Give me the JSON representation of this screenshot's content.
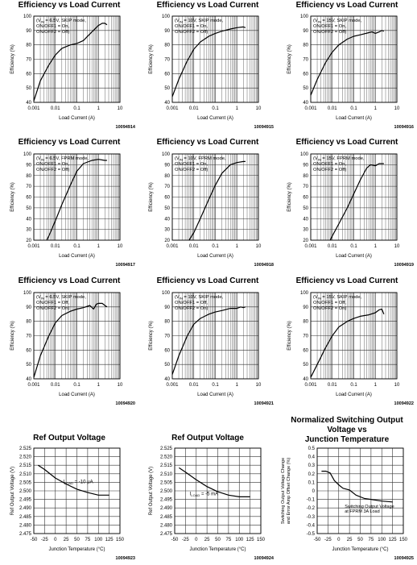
{
  "chart_data": [
    {
      "type": "line",
      "title": "Efficiency vs Load Current",
      "xlabel": "Load Current (A)",
      "ylabel": "Efficiency (%)",
      "xscale": "log",
      "xlim": [
        0.001,
        10
      ],
      "ylim": [
        40,
        100
      ],
      "xticks": [
        "0.001",
        "0.01",
        "0.1",
        "1",
        "10"
      ],
      "yticks": [
        "40",
        "50",
        "60",
        "70",
        "80",
        "90",
        "100"
      ],
      "annotation": [
        "(V",
        "IN",
        " = 6.5V, SKIP mode,",
        "ON/OFF1 = On,",
        "ON/OFF2 = Off)"
      ],
      "code": "10094914",
      "series": [
        {
          "x": [
            0.001,
            0.002,
            0.005,
            0.01,
            0.02,
            0.05,
            0.1,
            0.2,
            0.5,
            1,
            1.5,
            2,
            2.5
          ],
          "y": [
            41,
            55,
            66,
            73,
            77.5,
            80,
            81,
            83,
            89,
            93.5,
            95,
            95,
            94
          ]
        }
      ]
    },
    {
      "type": "line",
      "title": "Efficiency vs Load Current",
      "xlabel": "Load Current (A)",
      "ylabel": "Efficiency (%)",
      "xscale": "log",
      "xlim": [
        0.001,
        10
      ],
      "ylim": [
        40,
        100
      ],
      "xticks": [
        "0.001",
        "0.01",
        "0.1",
        "1",
        "10"
      ],
      "yticks": [
        "40",
        "50",
        "60",
        "70",
        "80",
        "90",
        "100"
      ],
      "annotation": [
        "(V",
        "IN",
        " = 10V, SKIP mode,",
        "ON/OFF1 = On,",
        "ON/OFF2 = Off)"
      ],
      "code": "10094915",
      "series": [
        {
          "x": [
            0.001,
            0.002,
            0.005,
            0.01,
            0.02,
            0.05,
            0.1,
            0.2,
            0.5,
            1,
            2,
            2.5
          ],
          "y": [
            44,
            56,
            69,
            77,
            82,
            86,
            88,
            89.5,
            91,
            92,
            92.5,
            92
          ]
        }
      ]
    },
    {
      "type": "line",
      "title": "Efficiency vs Load Current",
      "xlabel": "Load Current (A)",
      "ylabel": "Efficiency (%)",
      "xscale": "log",
      "xlim": [
        0.001,
        10
      ],
      "ylim": [
        40,
        100
      ],
      "xticks": [
        "0.001",
        "0.01",
        "0.1",
        "1",
        "10"
      ],
      "yticks": [
        "40",
        "50",
        "60",
        "70",
        "80",
        "90",
        "100"
      ],
      "annotation": [
        "(V",
        "IN",
        " = 15V, SKIP mode,",
        "ON/OFF1 = On,",
        "ON/OFF2 = Off)"
      ],
      "code": "10094916",
      "series": [
        {
          "x": [
            0.001,
            0.002,
            0.005,
            0.01,
            0.02,
            0.05,
            0.1,
            0.2,
            0.5,
            0.7,
            1,
            1.5,
            2,
            2.5
          ],
          "y": [
            45,
            56,
            68,
            75,
            80,
            84,
            86,
            87,
            88.5,
            89,
            88,
            89,
            90,
            89.5
          ]
        }
      ]
    },
    {
      "type": "line",
      "title": "Efficiency vs Load Current",
      "xlabel": "Load Current (A)",
      "ylabel": "Efficiency (%)",
      "xscale": "log",
      "xlim": [
        0.001,
        10
      ],
      "ylim": [
        20,
        100
      ],
      "xticks": [
        "0.001",
        "0.01",
        "0.1",
        "1",
        "10"
      ],
      "yticks": [
        "20",
        "30",
        "40",
        "50",
        "60",
        "70",
        "80",
        "90",
        "100"
      ],
      "annotation": [
        "(V",
        "IN",
        " = 6.5V, FPRM mode,",
        "ON/OFF1 = On,",
        "ON/OFF2 = Off)"
      ],
      "code": "10094917",
      "series": [
        {
          "x": [
            0.004,
            0.005,
            0.01,
            0.02,
            0.05,
            0.1,
            0.2,
            0.5,
            1,
            2,
            2.5
          ],
          "y": [
            20,
            24,
            38,
            53,
            71,
            84,
            91,
            94,
            95,
            94,
            94
          ]
        }
      ]
    },
    {
      "type": "line",
      "title": "Efficiency vs Load Current",
      "xlabel": "Load Current (A)",
      "ylabel": "Efficiency (%)",
      "xscale": "log",
      "xlim": [
        0.001,
        10
      ],
      "ylim": [
        20,
        100
      ],
      "xticks": [
        "0.001",
        "0.01",
        "0.1",
        "1",
        "10"
      ],
      "yticks": [
        "20",
        "30",
        "40",
        "50",
        "60",
        "70",
        "80",
        "90",
        "100"
      ],
      "annotation": [
        "(V",
        "IN",
        " = 10V, FPRM mode,",
        "ON/OFF1 = On,",
        "ON/OFF2 = Off)"
      ],
      "code": "10094918",
      "series": [
        {
          "x": [
            0.006,
            0.01,
            0.02,
            0.05,
            0.1,
            0.2,
            0.5,
            1,
            2,
            2.5
          ],
          "y": [
            20,
            27,
            40,
            58,
            71,
            82,
            90,
            92,
            93,
            93
          ]
        }
      ]
    },
    {
      "type": "line",
      "title": "Efficiency vs Load Current",
      "xlabel": "Load Current (A)",
      "ylabel": "Efficiency (%)",
      "xscale": "log",
      "xlim": [
        0.001,
        10
      ],
      "ylim": [
        20,
        100
      ],
      "xticks": [
        "0.001",
        "0.01",
        "0.1",
        "1",
        "10"
      ],
      "yticks": [
        "20",
        "30",
        "40",
        "50",
        "60",
        "70",
        "80",
        "90",
        "100"
      ],
      "annotation": [
        "(V",
        "IN",
        " = 15V, FPRM mode,",
        "ON/OFF1 = On,",
        "ON/OFF2 = Off)"
      ],
      "code": "10094919",
      "series": [
        {
          "x": [
            0.008,
            0.01,
            0.02,
            0.05,
            0.1,
            0.2,
            0.4,
            0.6,
            1,
            1.5,
            2,
            2.5
          ],
          "y": [
            20,
            24,
            35,
            50,
            63,
            76,
            87,
            90,
            89,
            91,
            91,
            91
          ]
        }
      ]
    },
    {
      "type": "line",
      "title": "Efficiency vs Load Current",
      "xlabel": "Load Current (A)",
      "ylabel": "Efficiency (%)",
      "xscale": "log",
      "xlim": [
        0.001,
        10
      ],
      "ylim": [
        40,
        100
      ],
      "xticks": [
        "0.001",
        "0.01",
        "0.1",
        "1",
        "10"
      ],
      "yticks": [
        "40",
        "50",
        "60",
        "70",
        "80",
        "90",
        "100"
      ],
      "annotation": [
        "(V",
        "IN",
        " = 6.5V, SKIP mode,",
        "ON/OFF1 = Off,",
        "ON/OFF2 = On)"
      ],
      "code": "10094920",
      "series": [
        {
          "x": [
            0.001,
            0.002,
            0.005,
            0.01,
            0.02,
            0.05,
            0.1,
            0.2,
            0.4,
            0.6,
            0.8,
            1,
            1.5,
            2,
            2.5
          ],
          "y": [
            41,
            56,
            70,
            79,
            84,
            87,
            88.5,
            89.5,
            91,
            88.5,
            92,
            92.5,
            92.5,
            91,
            90
          ]
        }
      ]
    },
    {
      "type": "line",
      "title": "Efficiency vs Load Current",
      "xlabel": "Load Current (A)",
      "ylabel": "Efficiency (%)",
      "xscale": "log",
      "xlim": [
        0.001,
        10
      ],
      "ylim": [
        40,
        100
      ],
      "xticks": [
        "0.001",
        "0.01",
        "0.1",
        "1",
        "10"
      ],
      "yticks": [
        "40",
        "50",
        "60",
        "70",
        "80",
        "90",
        "100"
      ],
      "annotation": [
        "(V",
        "IN",
        " = 10V, SKIP mode,",
        "ON/OFF1 = Off,",
        "ON/OFF2 = On)"
      ],
      "code": "10094921",
      "series": [
        {
          "x": [
            0.001,
            0.002,
            0.005,
            0.01,
            0.02,
            0.05,
            0.1,
            0.2,
            0.5,
            1,
            1.5,
            2,
            2.5
          ],
          "y": [
            43,
            56,
            70,
            78,
            82,
            85,
            86.5,
            87.5,
            89,
            89,
            90,
            89.5,
            90
          ]
        }
      ]
    },
    {
      "type": "line",
      "title": "Efficiency vs Load Current",
      "xlabel": "Load Current (A)",
      "ylabel": "Efficiency (%)",
      "xscale": "log",
      "xlim": [
        0.001,
        10
      ],
      "ylim": [
        40,
        100
      ],
      "xticks": [
        "0.001",
        "0.01",
        "0.1",
        "1",
        "10"
      ],
      "yticks": [
        "40",
        "50",
        "60",
        "70",
        "80",
        "90",
        "100"
      ],
      "annotation": [
        "(V",
        "IN",
        " = 15V, SKIP mode,",
        "ON/OFF1 = Off,",
        "ON/OFF2 = On)"
      ],
      "code": "10094922",
      "series": [
        {
          "x": [
            0.001,
            0.002,
            0.005,
            0.01,
            0.02,
            0.05,
            0.1,
            0.2,
            0.5,
            1,
            1.5,
            2,
            2.5
          ],
          "y": [
            41,
            50,
            62,
            70,
            76,
            80,
            82,
            83.5,
            84.5,
            86,
            88,
            88.5,
            85
          ]
        }
      ]
    },
    {
      "type": "line",
      "title": "Ref Output Voltage",
      "xlabel": "Junction Temperature (°C)",
      "ylabel": "Ref Output Voltage (V)",
      "xlim": [
        -50,
        150
      ],
      "ylim": [
        2.475,
        2.525
      ],
      "xticks": [
        "-50",
        "-25",
        "0",
        "25",
        "50",
        "75",
        "100",
        "125",
        "150"
      ],
      "yticks": [
        "2.475",
        "2.480",
        "2.485",
        "2.490",
        "2.495",
        "2.500",
        "2.505",
        "2.510",
        "2.515",
        "2.520",
        "2.525"
      ],
      "annotation": [
        "I",
        "LOAD",
        " = -10 μA"
      ],
      "code": "10094923",
      "series": [
        {
          "x": [
            -40,
            -25,
            0,
            25,
            50,
            75,
            100,
            125
          ],
          "y": [
            2.515,
            2.5125,
            2.5075,
            2.504,
            2.501,
            2.499,
            2.4975,
            2.4975
          ]
        }
      ]
    },
    {
      "type": "line",
      "title": "Ref Output Voltage",
      "xlabel": "Junction Temperature (°C)",
      "ylabel": "Ref Output Voltage (V)",
      "xlim": [
        -50,
        150
      ],
      "ylim": [
        2.475,
        2.525
      ],
      "xticks": [
        "-50",
        "-25",
        "0",
        "25",
        "50",
        "75",
        "100",
        "125",
        "150"
      ],
      "yticks": [
        "2.475",
        "2.480",
        "2.485",
        "2.490",
        "2.495",
        "2.500",
        "2.505",
        "2.510",
        "2.515",
        "2.520",
        "2.525"
      ],
      "annotation": [
        "I",
        "LOAD",
        " = -5 mA"
      ],
      "code": "10094924",
      "series": [
        {
          "x": [
            -40,
            -25,
            0,
            25,
            50,
            75,
            100,
            125
          ],
          "y": [
            2.5135,
            2.511,
            2.5065,
            2.5025,
            2.4995,
            2.4975,
            2.4965,
            2.4965
          ]
        }
      ]
    },
    {
      "type": "line",
      "title": "Normalized Switching Output Voltage vs Junction Temperature",
      "title_lines": [
        "Normalized Switching Output",
        "Voltage vs",
        "Junction Temperature"
      ],
      "xlabel": "Junction Temperature (°C)",
      "ylabel": "Switching Output Voltage Change and Error Amp Offset Change (%)",
      "ylabel_lines": [
        "Switching Output Voltage Change",
        "and Error Amp Offset Change (%)"
      ],
      "xlim": [
        -50,
        150
      ],
      "ylim": [
        -0.5,
        0.5
      ],
      "xticks": [
        "-50",
        "-25",
        "0",
        "25",
        "50",
        "75",
        "100",
        "125",
        "150"
      ],
      "yticks": [
        "-0.5",
        "-0.4",
        "-0.3",
        "-0.2",
        "-0.1",
        "0",
        "0.1",
        "0.2",
        "0.3",
        "0.4",
        "0.5"
      ],
      "annotation": [
        "Switching Output Voltage",
        "at FPRM 3A Load"
      ],
      "code": "10094925",
      "series": [
        {
          "x": [
            -40,
            -30,
            -20,
            -10,
            0,
            10,
            25,
            40,
            60,
            75,
            100,
            125
          ],
          "y": [
            0.23,
            0.23,
            0.21,
            0.12,
            0.07,
            0.03,
            0.01,
            -0.05,
            -0.09,
            -0.1,
            -0.12,
            -0.13
          ]
        }
      ]
    }
  ]
}
